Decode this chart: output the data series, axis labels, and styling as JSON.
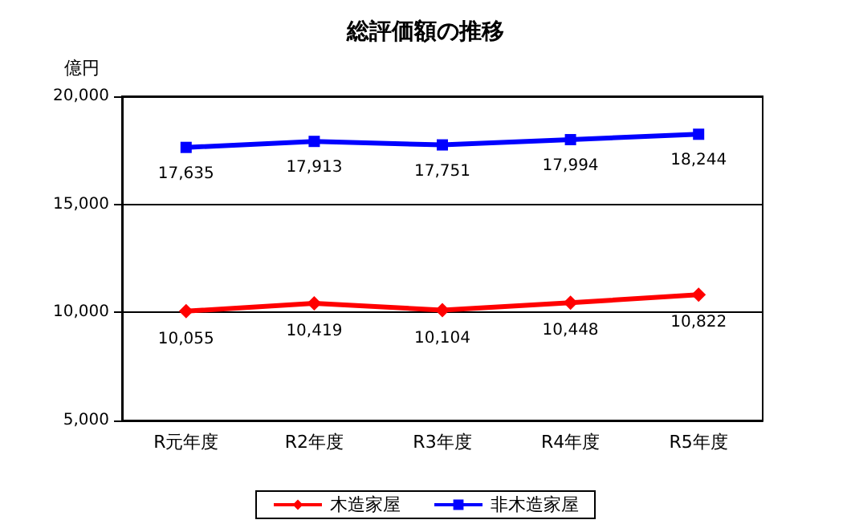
{
  "chart_data": {
    "type": "line",
    "title": "総評価額の推移",
    "ylabel": "億円",
    "categories": [
      "R元年度",
      "R2年度",
      "R3年度",
      "R4年度",
      "R5年度"
    ],
    "series": [
      {
        "name": "木造家屋",
        "color": "#ff0000",
        "marker": "diamond",
        "values": [
          10055,
          10419,
          10104,
          10448,
          10822
        ],
        "value_labels": [
          "10,055",
          "10,419",
          "10,104",
          "10,448",
          "10,822"
        ]
      },
      {
        "name": "非木造家屋",
        "color": "#0000ff",
        "marker": "square",
        "values": [
          17635,
          17913,
          17751,
          17994,
          18244
        ],
        "value_labels": [
          "17,635",
          "17,913",
          "17,751",
          "17,994",
          "18,244"
        ]
      }
    ],
    "ylim": [
      5000,
      20000
    ],
    "yticks": [
      {
        "value": 5000,
        "label": "5,000"
      },
      {
        "value": 10000,
        "label": "10,000"
      },
      {
        "value": 15000,
        "label": "15,000"
      },
      {
        "value": 20000,
        "label": "20,000"
      }
    ],
    "grid": "y",
    "legend": "bottom",
    "line_style": "solid"
  }
}
